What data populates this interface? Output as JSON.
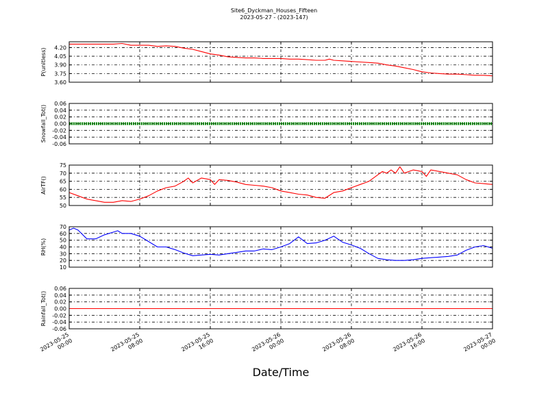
{
  "title": "Site6_Dyckman_Houses_Fifteen",
  "subtitle": "2023-05-27 - (2023-147)",
  "xlabel": "Date/Time",
  "chart_data": [
    {
      "type": "line",
      "ylabel": "P(unitless)",
      "ylim": [
        3.6,
        4.3
      ],
      "yticks": [
        "4.20",
        "4.05",
        "3.90",
        "3.75",
        "3.60"
      ],
      "ytick_values": [
        4.2,
        4.05,
        3.9,
        3.75,
        3.6
      ],
      "grid": true,
      "color": "#ff0000",
      "x_hours": [
        0,
        1,
        3,
        5,
        6,
        7,
        8,
        9,
        10,
        11,
        12,
        13,
        14,
        15,
        16,
        17,
        18,
        19,
        20,
        21,
        22,
        23,
        24,
        25,
        26,
        27,
        28,
        29,
        29.5,
        30,
        31,
        32,
        33,
        34,
        35,
        36,
        37,
        38,
        39,
        40,
        41,
        42,
        43,
        44,
        45,
        46,
        47,
        48
      ],
      "values": [
        4.26,
        4.26,
        4.26,
        4.26,
        4.27,
        4.24,
        4.24,
        4.24,
        4.22,
        4.23,
        4.22,
        4.19,
        4.17,
        4.13,
        4.09,
        4.07,
        4.04,
        4.03,
        4.02,
        4.02,
        4.01,
        4.01,
        4.01,
        4.0,
        4.0,
        3.99,
        3.98,
        3.98,
        4.0,
        3.98,
        3.97,
        3.96,
        3.95,
        3.94,
        3.93,
        3.9,
        3.88,
        3.85,
        3.82,
        3.78,
        3.76,
        3.75,
        3.74,
        3.74,
        3.73,
        3.72,
        3.72,
        3.71
      ]
    },
    {
      "type": "line",
      "ylabel": "Snowfall_Tot()",
      "ylim": [
        -0.06,
        0.06
      ],
      "yticks": [
        "0.06",
        "0.04",
        "0.02",
        "0.00",
        "-0.02",
        "-0.04",
        "-0.06"
      ],
      "ytick_values": [
        0.06,
        0.04,
        0.02,
        0.0,
        -0.02,
        -0.04,
        -0.06
      ],
      "grid": true,
      "color": "#008000",
      "marker": "dense",
      "x_hours": [
        0,
        48
      ],
      "values": [
        0.0,
        0.0
      ]
    },
    {
      "type": "line",
      "ylabel": "AirTF()",
      "ylim": [
        50,
        75
      ],
      "yticks": [
        "75",
        "70",
        "65",
        "60",
        "55",
        "50"
      ],
      "ytick_values": [
        75,
        70,
        65,
        60,
        55,
        50
      ],
      "grid": true,
      "color": "#ff0000",
      "x_hours": [
        0,
        1,
        2,
        3,
        4,
        5,
        6,
        7,
        8,
        9,
        10,
        11,
        12,
        13,
        13.5,
        14,
        15,
        16,
        16.5,
        17,
        18,
        19,
        20,
        21,
        22,
        23,
        24,
        25,
        26,
        27,
        28,
        29,
        30,
        31,
        32,
        33,
        34,
        35,
        35.5,
        36,
        36.5,
        37,
        37.5,
        38,
        39,
        40,
        40.5,
        41,
        42,
        43,
        44,
        45,
        46,
        47,
        48
      ],
      "values": [
        58,
        56,
        54,
        53,
        52,
        52,
        53,
        52.5,
        54,
        56,
        59,
        61,
        62,
        65,
        67,
        64,
        67,
        66,
        63,
        66,
        65.5,
        64.5,
        63,
        62.5,
        62,
        61,
        59,
        58,
        57,
        56.5,
        55,
        54.5,
        58,
        59,
        61,
        63,
        65,
        69,
        71,
        70,
        72,
        70,
        74,
        70,
        72,
        71,
        68,
        72,
        71,
        70,
        69,
        66,
        64,
        63.5,
        63
      ]
    },
    {
      "type": "line",
      "ylabel": "RH(%)",
      "ylim": [
        10,
        70
      ],
      "yticks": [
        "70",
        "60",
        "50",
        "40",
        "30",
        "20",
        "10"
      ],
      "ytick_values": [
        70,
        60,
        50,
        40,
        30,
        20,
        10
      ],
      "grid": true,
      "color": "#0000ff",
      "x_hours": [
        0,
        0.5,
        1,
        2,
        3,
        4,
        5,
        5.5,
        6,
        7,
        8,
        9,
        10,
        11,
        12,
        13,
        14,
        15,
        16,
        17,
        18,
        19,
        20,
        21,
        22,
        23,
        24,
        25,
        26,
        27,
        28,
        29,
        30,
        31,
        32,
        33,
        34,
        35,
        36,
        37,
        38,
        39,
        40,
        41,
        42,
        43,
        44,
        45,
        46,
        47,
        47.5,
        48
      ],
      "values": [
        65,
        68,
        65,
        52,
        52,
        58,
        62,
        64,
        60,
        60,
        56,
        48,
        40,
        40,
        36,
        31,
        27,
        28,
        29,
        28,
        30,
        32,
        34,
        34,
        37,
        36,
        40,
        45,
        55,
        45,
        46,
        50,
        56,
        47,
        43,
        38,
        30,
        23,
        21,
        20,
        20,
        21,
        23,
        24,
        25,
        26,
        28,
        35,
        40,
        42,
        40,
        38
      ]
    },
    {
      "type": "line",
      "ylabel": "Rainfall_Tot()",
      "ylim": [
        -0.06,
        0.06
      ],
      "yticks": [
        "0.06",
        "0.04",
        "0.02",
        "0.00",
        "-0.02",
        "-0.04",
        "-0.06"
      ],
      "ytick_values": [
        0.06,
        0.04,
        0.02,
        0.0,
        -0.02,
        -0.04,
        -0.06
      ],
      "grid": true,
      "color": "#ff0000",
      "x_hours": [
        0,
        48
      ],
      "values": [
        0.0,
        0.0
      ]
    }
  ],
  "x_axis": {
    "range_hours": [
      0,
      48
    ],
    "tick_hours": [
      0,
      8,
      16,
      24,
      32,
      40,
      48
    ],
    "tick_labels": [
      [
        "2023-05-25",
        "00:00"
      ],
      [
        "2023-05-25",
        "08:00"
      ],
      [
        "2023-05-25",
        "16:00"
      ],
      [
        "2023-05-26",
        "00:00"
      ],
      [
        "2023-05-26",
        "08:00"
      ],
      [
        "2023-05-26",
        "16:00"
      ],
      [
        "2023-05-27",
        "00:00"
      ]
    ]
  }
}
